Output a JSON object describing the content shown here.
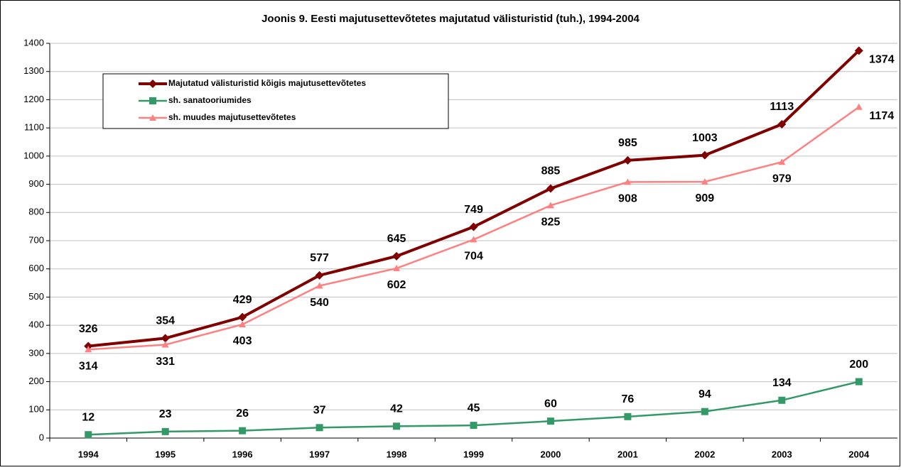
{
  "chart_data": {
    "type": "line",
    "title": "Joonis 9. Eesti majutusettevõtetes majutatud välisturistid (tuh.), 1994-2004",
    "categories": [
      "1994",
      "1995",
      "1996",
      "1997",
      "1998",
      "1999",
      "2000",
      "2001",
      "2002",
      "2003",
      "2004"
    ],
    "series": [
      {
        "name": "Majutatud välisturistid kõigis majutusettevõtetes",
        "color": "#800000",
        "marker": "diamond",
        "values": [
          326,
          354,
          429,
          577,
          645,
          749,
          885,
          985,
          1003,
          1113,
          1374
        ]
      },
      {
        "name": "sh. sanatooriumides",
        "color": "#339966",
        "marker": "square",
        "values": [
          12,
          23,
          26,
          37,
          42,
          45,
          60,
          76,
          94,
          134,
          200
        ]
      },
      {
        "name": "sh. muudes majutusettevõtetes",
        "color": "#ff8080",
        "marker": "triangle",
        "values": [
          314,
          331,
          403,
          540,
          602,
          704,
          825,
          908,
          909,
          979,
          1174
        ]
      }
    ],
    "ylim": [
      0,
      1400
    ],
    "yticks": [
      0,
      100,
      200,
      300,
      400,
      500,
      600,
      700,
      800,
      900,
      1000,
      1100,
      1200,
      1300,
      1400
    ],
    "grid": true,
    "legend": "top-left"
  }
}
